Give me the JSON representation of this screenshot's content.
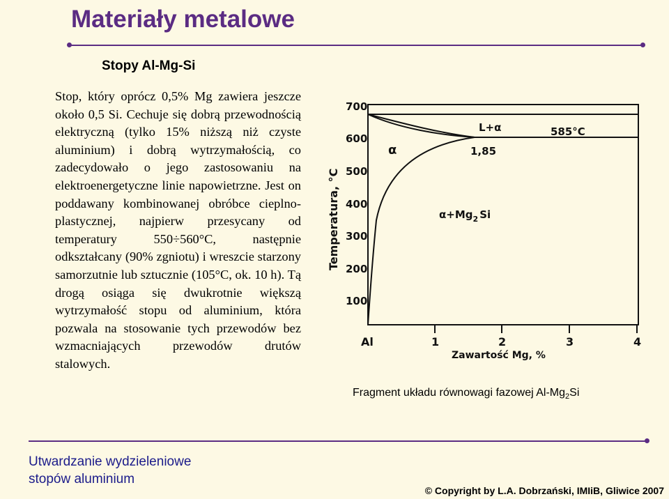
{
  "header": {
    "title": "Materiały metalowe",
    "subtitle": "Stopy Al-Mg-Si"
  },
  "body": {
    "paragraph": "Stop, który oprócz 0,5% Mg zawiera jeszcze około 0,5 Si. Cechuje się dobrą przewodnością elektryczną (tylko 15% niższą niż czyste aluminium) i dobrą wytrzymałością, co zadecydowało o jego zastosowaniu na elektroenergetyczne linie napowietrzne. Jest on poddawany kombinowanej obróbce cieplno-plastycznej, najpierw przesycany od temperatury 550÷560°C, następnie odkształcany (90% zgniotu) i wreszcie starzony samorzutnie lub sztucznie (105°C, ok. 10 h). Tą drogą osiąga się dwukrotnie większą wytrzymałość stopu od aluminium, która pozwala na stosowanie tych przewodów bez wzmacniających przewodów drutów stalowych."
  },
  "diagram": {
    "ylabel": "Temperatura, °C",
    "xlabel": "Zawartość Mg, %",
    "y_ticks": [
      "700",
      "600",
      "500",
      "400",
      "300",
      "200",
      "100"
    ],
    "x_ticks": [
      "Al",
      "1",
      "2",
      "3",
      "4"
    ],
    "region_alpha": "α",
    "region_alpha_mg2si": "α+Mg",
    "region_alpha_mg2si_sub": "2",
    "region_alpha_mg2si_suffix": "Si",
    "region_liquid_alpha": "L+α",
    "eutectic_temp": "585°C",
    "eutectic_point": "1,85",
    "caption_prefix": "Fragment układu równowagi fazowej  Al-Mg",
    "caption_sub": "2",
    "caption_suffix": "Si"
  },
  "footer": {
    "section_line1": "Utwardzanie wydzieleniowe",
    "section_line2": "stopów aluminium",
    "copyright": "© Copyright by L.A. Dobrzański, IMIiB, Gliwice  2007"
  },
  "colors": {
    "accent": "#5b2c83",
    "section_text": "#1b1b8a",
    "background": "#fdf9e4"
  }
}
